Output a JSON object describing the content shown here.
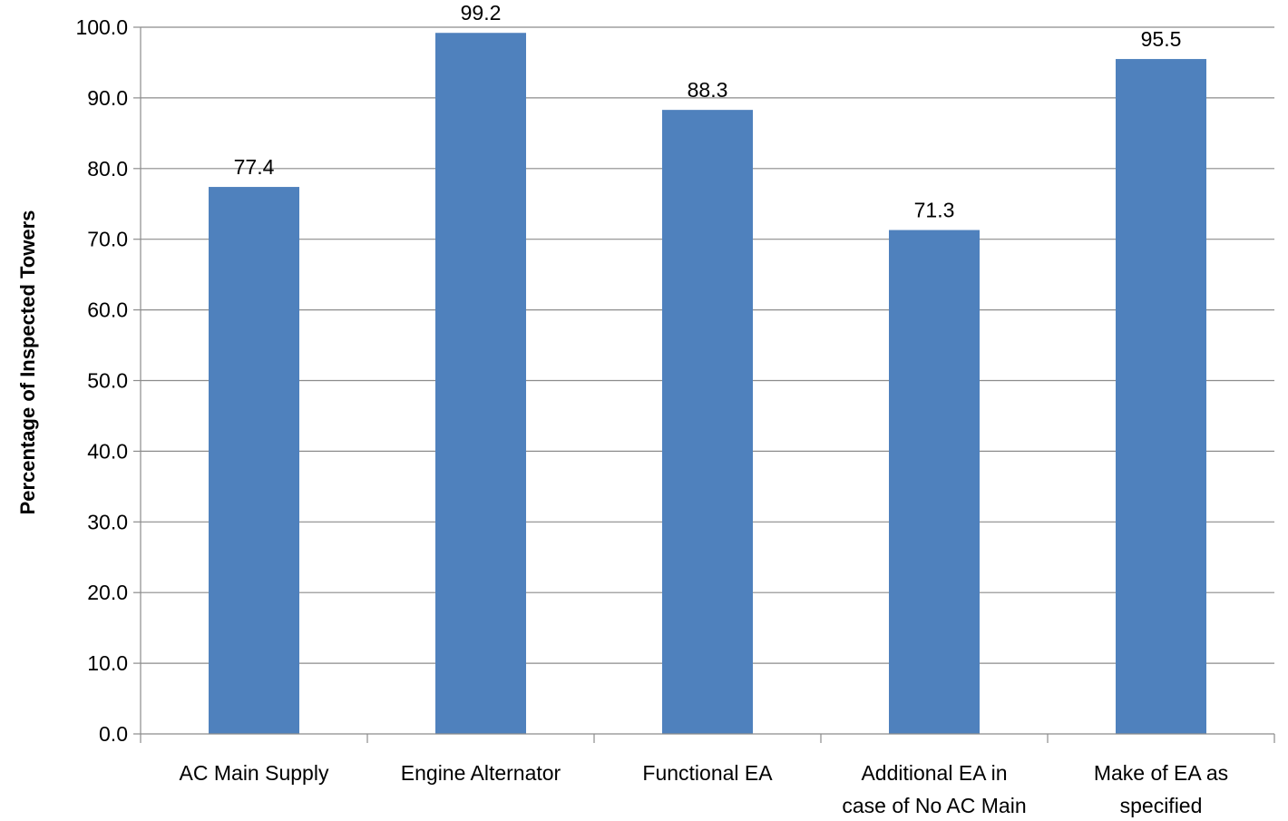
{
  "chart_data": {
    "type": "bar",
    "title": "",
    "xlabel": "",
    "ylabel": "Percentage of Inspected Towers",
    "categories": [
      [
        "AC Main Supply"
      ],
      [
        "Engine Alternator"
      ],
      [
        "Functional EA"
      ],
      [
        "Additional EA in",
        "case of No AC Main"
      ],
      [
        "Make of EA as",
        "specified"
      ]
    ],
    "values": [
      77.4,
      99.2,
      88.3,
      71.3,
      95.5
    ],
    "value_labels": [
      "77.4",
      "99.2",
      "88.3",
      "71.3",
      "95.5"
    ],
    "ylim": [
      0,
      100
    ],
    "y_ticks": [
      "0.0",
      "10.0",
      "20.0",
      "30.0",
      "40.0",
      "50.0",
      "60.0",
      "70.0",
      "80.0",
      "90.0",
      "100.0"
    ],
    "grid": true,
    "legend": "none",
    "bar_color": "#4f81bd"
  }
}
